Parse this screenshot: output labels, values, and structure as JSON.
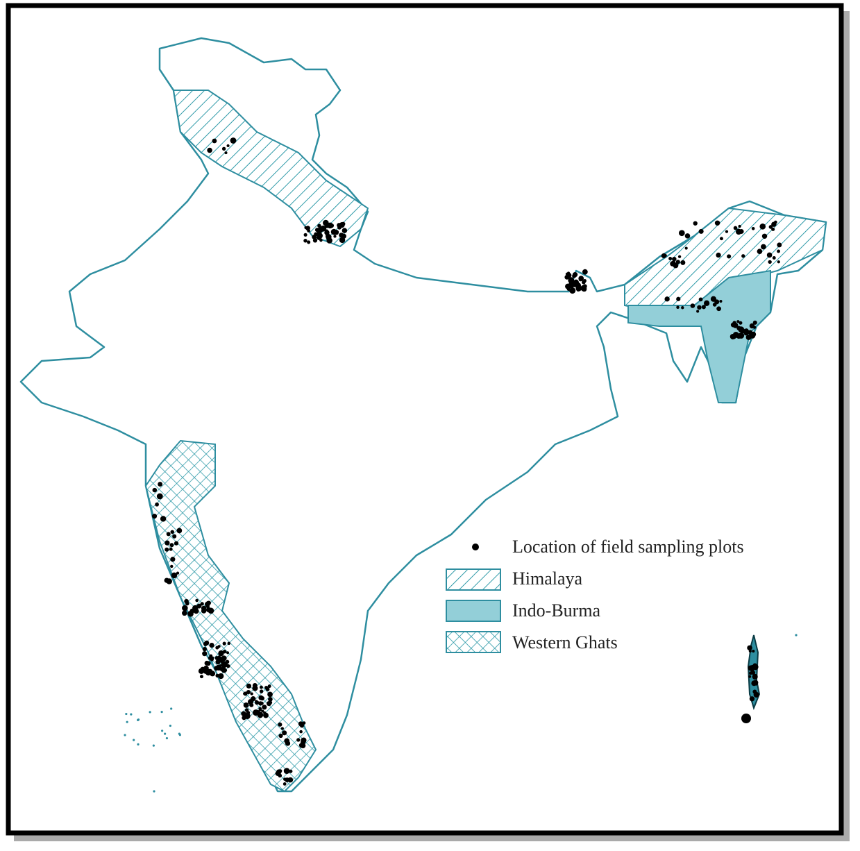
{
  "legend": {
    "items": [
      {
        "label": "Location of field sampling plots"
      },
      {
        "label": "Himalaya"
      },
      {
        "label": "Indo-Burma"
      },
      {
        "label": "Western Ghats"
      }
    ]
  }
}
